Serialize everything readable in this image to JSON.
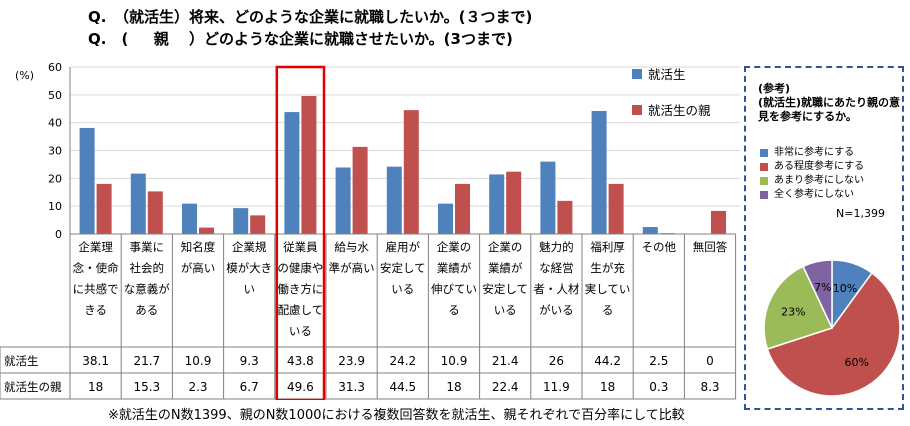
{
  "header": {
    "q1": "Q.　（就活生）将来、どのような企業に就職したいか。(３つまで)",
    "q2": "Q.　(　  親　 ）どのような企業に就職させたいか。(3つまで)"
  },
  "footnote": "※就活生のN数1399、親のN数1000における複数回答数を就活生、親それぞれで百分率にして比較",
  "chart_data": [
    {
      "type": "bar",
      "ylabel": "(%)",
      "ylim": [
        0,
        60
      ],
      "yticks": [
        0,
        10,
        20,
        30,
        40,
        50,
        60
      ],
      "legend_position": "top-right",
      "categories": [
        "企業理念・使命に共感できる",
        "事業に社会的な意義がある",
        "知名度が高い",
        "企業規模が大きい",
        "従業員の健康や働き方に配慮している",
        "給与水準が高い",
        "雇用が安定している",
        "企業の業績が伸びている",
        "企業の業績が安定している",
        "魅力的な経営者・人材がいる",
        "福利厚生が充実している",
        "その他",
        "無回答"
      ],
      "category_lines": [
        [
          "企業理",
          "念・使命",
          "に共感で",
          "きる"
        ],
        [
          "事業に",
          "社会的",
          "な意義が",
          "ある"
        ],
        [
          "知名度",
          "が高い"
        ],
        [
          "企業規",
          "模が大き",
          "い"
        ],
        [
          "従業員",
          "の健康や",
          "働き方に",
          "配慮して",
          "いる"
        ],
        [
          "給与水",
          "準が高い"
        ],
        [
          "雇用が",
          "安定して",
          "いる"
        ],
        [
          "企業の",
          "業績が",
          "伸びてい",
          "る"
        ],
        [
          "企業の",
          "業績が",
          "安定して",
          "いる"
        ],
        [
          "魅力的",
          "な経営",
          "者・人材",
          "がいる"
        ],
        [
          "福利厚",
          "生が充",
          "実してい",
          "る"
        ],
        [
          "その他"
        ],
        [
          "無回答"
        ]
      ],
      "series": [
        {
          "name": "就活生",
          "color": "#4f81bd",
          "values": [
            38.1,
            21.7,
            10.9,
            9.3,
            43.8,
            23.9,
            24.2,
            10.9,
            21.4,
            26,
            44.2,
            2.5,
            0
          ]
        },
        {
          "name": "就活生の親",
          "color": "#c0504d",
          "values": [
            18,
            15.3,
            2.3,
            6.7,
            49.6,
            31.3,
            44.5,
            18,
            22.4,
            11.9,
            18,
            0.3,
            8.3
          ]
        }
      ],
      "highlight_category_index": 4,
      "highlight_color": "#e00000"
    },
    {
      "type": "pie",
      "title": "(参考)\n(就活生)就職にあたり親の意見を参考にするか。",
      "n_label": "N=1,399",
      "slices": [
        {
          "label": "非常に参考にする",
          "value": 10,
          "text": "10%",
          "color": "#4f81bd"
        },
        {
          "label": "ある程度参考にする",
          "value": 60,
          "text": "60%",
          "color": "#c0504d"
        },
        {
          "label": "あまり参考にしない",
          "value": 23,
          "text": "23%",
          "color": "#9bbb59"
        },
        {
          "label": "全く参考にしない",
          "value": 7,
          "text": "7%",
          "color": "#8064a2"
        }
      ]
    }
  ]
}
